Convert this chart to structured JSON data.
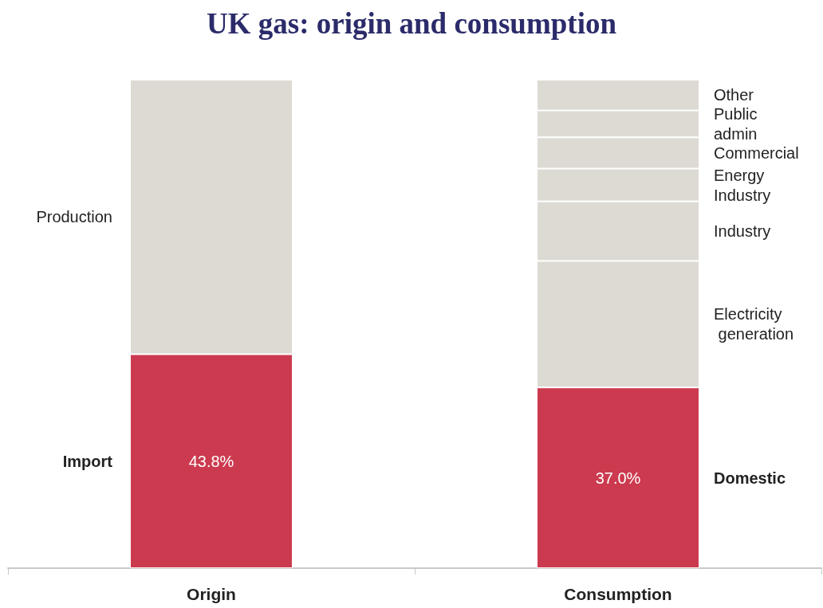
{
  "chart_data": {
    "type": "bar",
    "title": "UK gas: origin and consumption",
    "stacked": true,
    "categories": [
      "Origin",
      "Consumption"
    ],
    "ylim": [
      0,
      100
    ],
    "series": [
      {
        "name": "Import",
        "color": "#cc3a4f",
        "values": [
          43.8,
          null
        ],
        "value_labels": [
          "43.8%",
          null
        ]
      },
      {
        "name": "Domestic",
        "color": "#cc3a4f",
        "values": [
          null,
          37.0
        ],
        "value_labels": [
          null,
          "37.0%"
        ]
      },
      {
        "name": "Production",
        "color": "#dddad3",
        "values": [
          56.2,
          null
        ]
      },
      {
        "name": "Electricity generation",
        "color": "#dddad3",
        "values": [
          null,
          25.9
        ]
      },
      {
        "name": "Industry",
        "color": "#dddad3",
        "values": [
          null,
          12.2
        ]
      },
      {
        "name": "Energy Industry",
        "color": "#dddad3",
        "values": [
          null,
          6.7
        ]
      },
      {
        "name": "Commercial",
        "color": "#dddad3",
        "values": [
          null,
          6.4
        ]
      },
      {
        "name": "Public admin",
        "color": "#dddad3",
        "values": [
          null,
          5.5
        ]
      },
      {
        "name": "Other",
        "color": "#dddad3",
        "values": [
          null,
          6.3
        ]
      }
    ]
  }
}
